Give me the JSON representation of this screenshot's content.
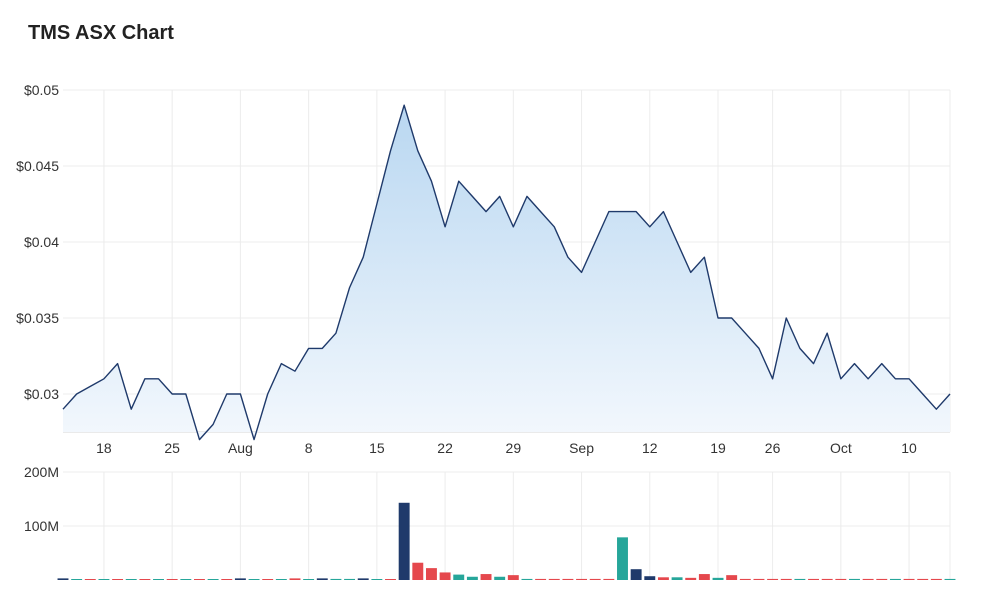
{
  "chart_data": [
    {
      "type": "area",
      "title": "TMS ASX Chart",
      "xlabel": "",
      "ylabel": "",
      "ylim": [
        0.0275,
        0.05
      ],
      "y_ticks": [
        {
          "value": 0.05,
          "label": "$0.05"
        },
        {
          "value": 0.045,
          "label": "$0.045"
        },
        {
          "value": 0.04,
          "label": "$0.04"
        },
        {
          "value": 0.035,
          "label": "$0.035"
        },
        {
          "value": 0.03,
          "label": "$0.03"
        }
      ],
      "x_ticks": [
        {
          "index": 3,
          "label": "18"
        },
        {
          "index": 8,
          "label": "25"
        },
        {
          "index": 13,
          "label": "Aug"
        },
        {
          "index": 18,
          "label": "8"
        },
        {
          "index": 23,
          "label": "15"
        },
        {
          "index": 28,
          "label": "22"
        },
        {
          "index": 33,
          "label": "29"
        },
        {
          "index": 38,
          "label": "Sep"
        },
        {
          "index": 43,
          "label": "12"
        },
        {
          "index": 48,
          "label": "19"
        },
        {
          "index": 52,
          "label": "26"
        },
        {
          "index": 57,
          "label": "Oct"
        },
        {
          "index": 62,
          "label": "10"
        }
      ],
      "grid": true,
      "colors": {
        "line": "#1f3a6b",
        "fill_top": "#b9d7f1",
        "fill_bottom": "#f3f8fd",
        "grid": "#ececec"
      },
      "series": [
        {
          "values": [
            0.029,
            0.03,
            0.0305,
            0.031,
            0.032,
            0.029,
            0.031,
            0.031,
            0.03,
            0.03,
            0.027,
            0.028,
            0.03,
            0.03,
            0.027,
            0.03,
            0.032,
            0.0315,
            0.033,
            0.033,
            0.034,
            0.037,
            0.039,
            0.0425,
            0.046,
            0.049,
            0.046,
            0.044,
            0.041,
            0.044,
            0.043,
            0.042,
            0.043,
            0.041,
            0.043,
            0.042,
            0.041,
            0.039,
            0.038,
            0.04,
            0.042,
            0.042,
            0.042,
            0.041,
            0.042,
            0.04,
            0.038,
            0.039,
            0.035,
            0.035,
            0.034,
            0.033,
            0.031,
            0.035,
            0.033,
            0.032,
            0.034,
            0.031,
            0.032,
            0.031,
            0.032,
            0.031,
            0.031,
            0.03,
            0.029,
            0.03
          ]
        }
      ]
    },
    {
      "type": "bar",
      "title": "",
      "ylim": [
        0,
        200
      ],
      "y_unit": "M",
      "y_ticks": [
        {
          "value": 200,
          "label": "200M"
        },
        {
          "value": 100,
          "label": "100M"
        }
      ],
      "colors": {
        "up": "#26a69a",
        "down": "#e5484d",
        "flat": "#1f3a6b"
      },
      "values": [
        3,
        1,
        1,
        1,
        1,
        1,
        1,
        1,
        1,
        1,
        1,
        1,
        1,
        3,
        1,
        1,
        1,
        3,
        1,
        3,
        2,
        2,
        3,
        1,
        1,
        143,
        32,
        22,
        14,
        10,
        6,
        11,
        6,
        9,
        2,
        2,
        2,
        2,
        2,
        2,
        2,
        79,
        20,
        7,
        5,
        5,
        4,
        11,
        4,
        9,
        2,
        2,
        2,
        2,
        2,
        2,
        2,
        2,
        2,
        2,
        2,
        2,
        2,
        2,
        2,
        2
      ],
      "directions": [
        "flat",
        "up",
        "down",
        "up",
        "down",
        "up",
        "down",
        "up",
        "down",
        "up",
        "down",
        "up",
        "down",
        "flat",
        "up",
        "down",
        "up",
        "down",
        "up",
        "flat",
        "up",
        "up",
        "flat",
        "up",
        "down",
        "flat",
        "down",
        "down",
        "down",
        "up",
        "up",
        "down",
        "up",
        "down",
        "up",
        "down",
        "down",
        "down",
        "down",
        "down",
        "down",
        "up",
        "flat",
        "flat",
        "down",
        "up",
        "down",
        "down",
        "up",
        "down",
        "down",
        "down",
        "down",
        "down",
        "up",
        "down",
        "down",
        "down",
        "up",
        "down",
        "down",
        "up",
        "down",
        "down",
        "down",
        "up"
      ]
    }
  ]
}
